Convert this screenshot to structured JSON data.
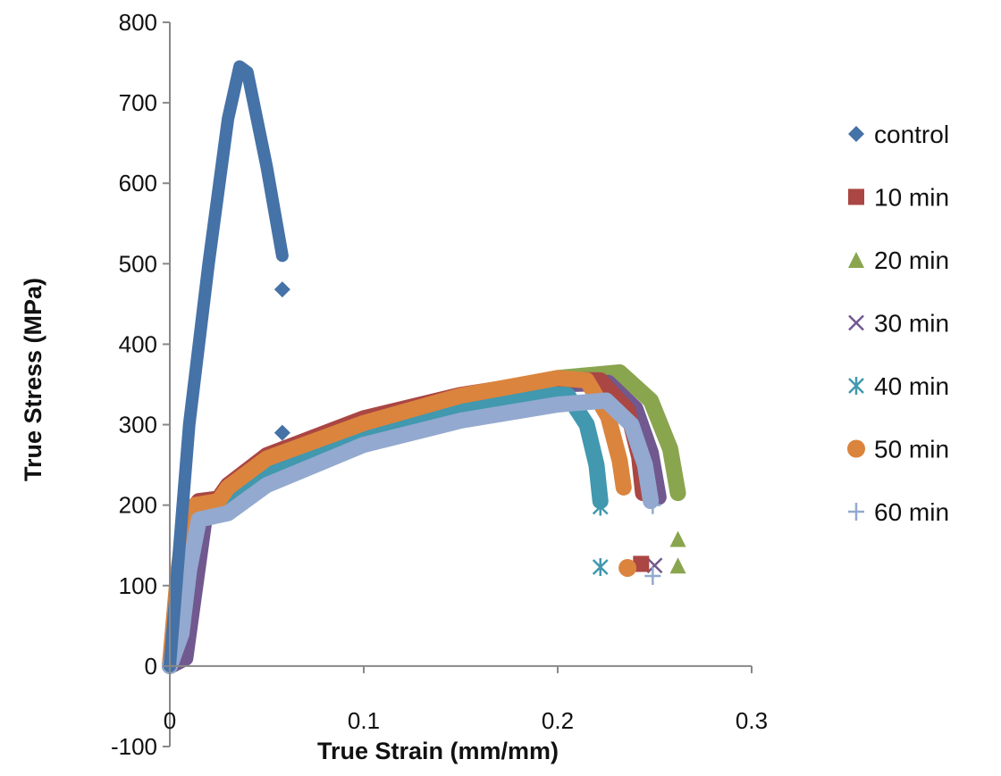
{
  "chart_data": {
    "type": "scatter",
    "xlabel": "True Strain (mm/mm)",
    "ylabel": "True Stress (MPa)",
    "xlim": [
      0,
      0.3
    ],
    "ylim": [
      -100,
      800
    ],
    "xticks": [
      "0",
      "0.1",
      "0.2",
      "0.3"
    ],
    "yticks": [
      "-100",
      "0",
      "100",
      "200",
      "300",
      "400",
      "500",
      "600",
      "700",
      "800"
    ],
    "grid": false,
    "legend_position": "right",
    "series": [
      {
        "name": "control",
        "color": "#4572a7",
        "marker": "diamond",
        "x": [
          0,
          0.005,
          0.01,
          0.02,
          0.03,
          0.036,
          0.04,
          0.05,
          0.058
        ],
        "y": [
          0,
          150,
          300,
          500,
          680,
          745,
          738,
          620,
          510
        ],
        "points": [
          [
            0.058,
            468
          ],
          [
            0.058,
            290
          ]
        ]
      },
      {
        "name": "10 min",
        "color": "#aa4643",
        "marker": "square",
        "x": [
          0,
          0.005,
          0.01,
          0.015,
          0.025,
          0.03,
          0.05,
          0.1,
          0.15,
          0.2,
          0.222,
          0.236,
          0.242,
          0.244
        ],
        "y": [
          0,
          100,
          190,
          205,
          208,
          225,
          262,
          308,
          337,
          356,
          355,
          318,
          260,
          215
        ],
        "points": [
          [
            0.243,
            127
          ]
        ]
      },
      {
        "name": "20 min",
        "color": "#89a54e",
        "marker": "triangle",
        "x": [
          0,
          0.005,
          0.01,
          0.015,
          0.025,
          0.03,
          0.05,
          0.1,
          0.15,
          0.2,
          0.232,
          0.248,
          0.258,
          0.262
        ],
        "y": [
          0,
          100,
          190,
          205,
          208,
          222,
          258,
          305,
          335,
          358,
          365,
          330,
          270,
          215
        ],
        "points": [
          [
            0.262,
            158
          ],
          [
            0.262,
            125
          ]
        ]
      },
      {
        "name": "30 min",
        "color": "#71588f",
        "marker": "x",
        "x": [
          0,
          0.008,
          0.012,
          0.018,
          0.03,
          0.04,
          0.05,
          0.1,
          0.15,
          0.2,
          0.226,
          0.24,
          0.248,
          0.252
        ],
        "y": [
          0,
          10,
          80,
          185,
          195,
          210,
          240,
          295,
          330,
          350,
          352,
          320,
          265,
          210
        ],
        "points": [
          [
            0.25,
            125
          ]
        ]
      },
      {
        "name": "40 min",
        "color": "#4198af",
        "marker": "asterisk",
        "x": [
          0,
          0.005,
          0.01,
          0.015,
          0.025,
          0.03,
          0.05,
          0.1,
          0.15,
          0.19,
          0.205,
          0.215,
          0.22,
          0.222
        ],
        "y": [
          0,
          100,
          180,
          195,
          200,
          215,
          245,
          287,
          318,
          338,
          337,
          300,
          250,
          205
        ],
        "points": [
          [
            0.222,
            198
          ],
          [
            0.222,
            123
          ]
        ]
      },
      {
        "name": "50 min",
        "color": "#db843d",
        "marker": "circle",
        "x": [
          0,
          0.004,
          0.008,
          0.013,
          0.025,
          0.03,
          0.05,
          0.1,
          0.15,
          0.2,
          0.215,
          0.226,
          0.232,
          0.234
        ],
        "y": [
          0,
          110,
          185,
          200,
          205,
          222,
          258,
          302,
          336,
          358,
          355,
          310,
          255,
          222
        ],
        "points": [
          [
            0.236,
            122
          ]
        ]
      },
      {
        "name": "60 min",
        "color": "#93a9cf",
        "marker": "plus",
        "x": [
          0,
          0.006,
          0.01,
          0.015,
          0.03,
          0.05,
          0.1,
          0.15,
          0.2,
          0.225,
          0.238,
          0.245,
          0.248
        ],
        "y": [
          0,
          40,
          120,
          182,
          190,
          225,
          275,
          305,
          325,
          330,
          300,
          250,
          205
        ],
        "points": [
          [
            0.249,
            200
          ],
          [
            0.249,
            112
          ]
        ]
      }
    ]
  }
}
